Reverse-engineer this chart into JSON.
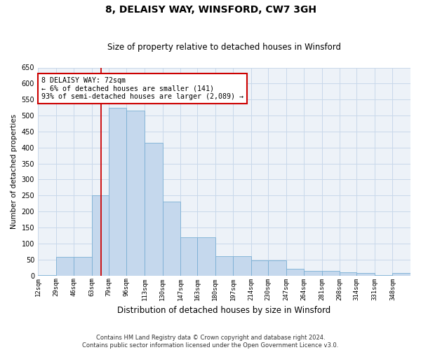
{
  "title": "8, DELAISY WAY, WINSFORD, CW7 3GH",
  "subtitle": "Size of property relative to detached houses in Winsford",
  "xlabel": "Distribution of detached houses by size in Winsford",
  "ylabel": "Number of detached properties",
  "bar_color": "#c5d8ed",
  "bar_edge_color": "#7aafd4",
  "grid_color": "#c8d8ea",
  "background_color": "#edf2f8",
  "annotation_box_color": "#ffffff",
  "annotation_border_color": "#cc0000",
  "vline_color": "#cc0000",
  "vline_x": 72,
  "categories": [
    "12sqm",
    "29sqm",
    "46sqm",
    "63sqm",
    "79sqm",
    "96sqm",
    "113sqm",
    "130sqm",
    "147sqm",
    "163sqm",
    "180sqm",
    "197sqm",
    "214sqm",
    "230sqm",
    "247sqm",
    "264sqm",
    "281sqm",
    "298sqm",
    "314sqm",
    "331sqm",
    "348sqm"
  ],
  "bin_edges": [
    12,
    29,
    46,
    63,
    79,
    96,
    113,
    130,
    147,
    163,
    180,
    197,
    214,
    230,
    247,
    264,
    281,
    298,
    314,
    331,
    348,
    365
  ],
  "values": [
    2,
    58,
    58,
    250,
    525,
    515,
    415,
    230,
    120,
    120,
    60,
    60,
    48,
    48,
    22,
    15,
    15,
    10,
    8,
    2,
    8
  ],
  "ylim": [
    0,
    650
  ],
  "yticks": [
    0,
    50,
    100,
    150,
    200,
    250,
    300,
    350,
    400,
    450,
    500,
    550,
    600,
    650
  ],
  "annotation_line1": "8 DELAISY WAY: 72sqm",
  "annotation_line2": "← 6% of detached houses are smaller (141)",
  "annotation_line3": "93% of semi-detached houses are larger (2,089) →",
  "footnote1": "Contains HM Land Registry data © Crown copyright and database right 2024.",
  "footnote2": "Contains public sector information licensed under the Open Government Licence v3.0."
}
